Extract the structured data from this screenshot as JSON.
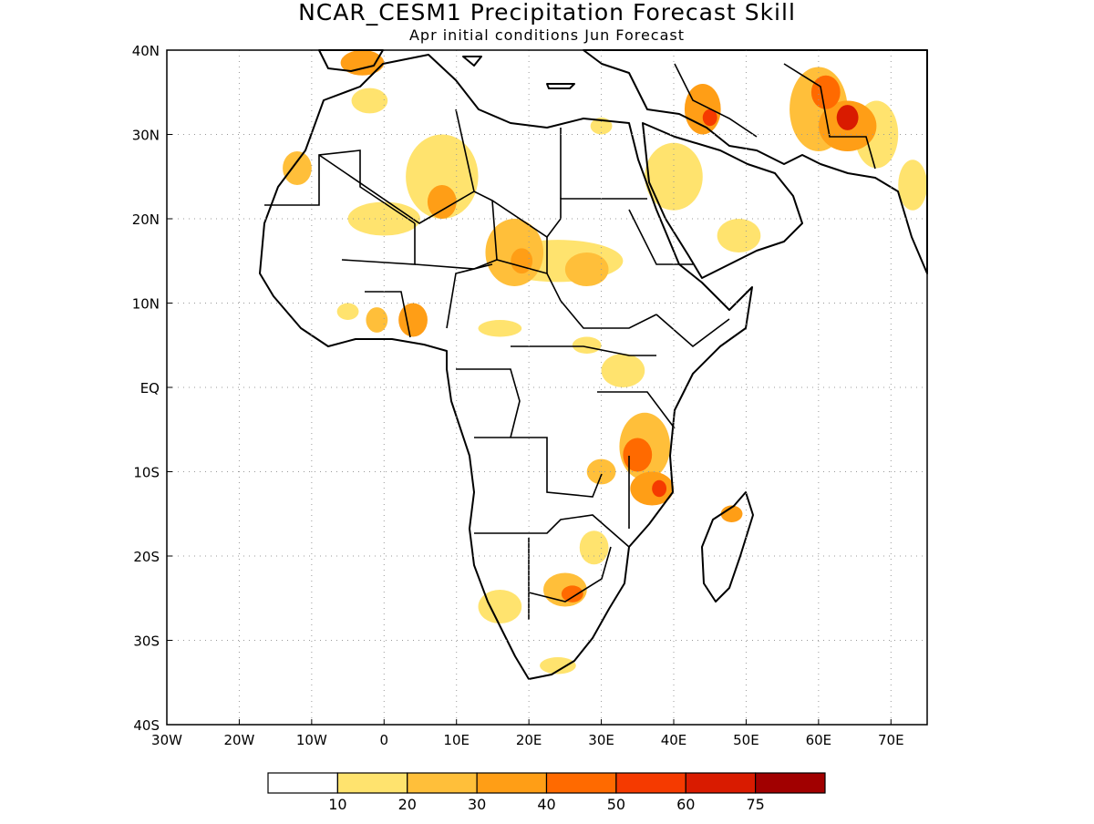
{
  "title": "NCAR_CESM1 Precipitation Forecast Skill",
  "subtitle": "Apr initial conditions  Jun Forecast",
  "map": {
    "lon_range": [
      -30,
      75
    ],
    "lat_range": [
      -40,
      40
    ],
    "x_ticks": [
      {
        "lon": -30,
        "label": "30W"
      },
      {
        "lon": -20,
        "label": "20W"
      },
      {
        "lon": -10,
        "label": "10W"
      },
      {
        "lon": 0,
        "label": "0"
      },
      {
        "lon": 10,
        "label": "10E"
      },
      {
        "lon": 20,
        "label": "20E"
      },
      {
        "lon": 30,
        "label": "30E"
      },
      {
        "lon": 40,
        "label": "40E"
      },
      {
        "lon": 50,
        "label": "50E"
      },
      {
        "lon": 60,
        "label": "60E"
      },
      {
        "lon": 70,
        "label": "70E"
      }
    ],
    "y_ticks": [
      {
        "lat": 40,
        "label": "40N"
      },
      {
        "lat": 30,
        "label": "30N"
      },
      {
        "lat": 20,
        "label": "20N"
      },
      {
        "lat": 10,
        "label": "10N"
      },
      {
        "lat": 0,
        "label": "EQ"
      },
      {
        "lat": -10,
        "label": "10S"
      },
      {
        "lat": -20,
        "label": "20S"
      },
      {
        "lat": -30,
        "label": "30S"
      },
      {
        "lat": -40,
        "label": "40S"
      }
    ],
    "grid": "dotted"
  },
  "colorbar": {
    "colors": [
      "#ffffff",
      "#ffe36e",
      "#ffbf3a",
      "#ff9e16",
      "#ff6a00",
      "#f53a00",
      "#d91b00",
      "#a10000"
    ],
    "labels": [
      "10",
      "20",
      "30",
      "40",
      "50",
      "60",
      "75"
    ]
  },
  "skill_regions": [
    {
      "lon": -12,
      "lat": 26,
      "rx": 2,
      "ry": 2,
      "level": 2
    },
    {
      "lon": -3,
      "lat": 38.5,
      "rx": 3,
      "ry": 1.5,
      "level": 3
    },
    {
      "lon": -2,
      "lat": 34,
      "rx": 2.5,
      "ry": 1.5,
      "level": 1
    },
    {
      "lon": 8,
      "lat": 25,
      "rx": 5,
      "ry": 5,
      "level": 1
    },
    {
      "lon": 8,
      "lat": 22,
      "rx": 2,
      "ry": 2,
      "level": 3
    },
    {
      "lon": 0,
      "lat": 20,
      "rx": 5,
      "ry": 2,
      "level": 1
    },
    {
      "lon": 18,
      "lat": 16,
      "rx": 4,
      "ry": 4,
      "level": 2
    },
    {
      "lon": 19,
      "lat": 15,
      "rx": 1.5,
      "ry": 1.5,
      "level": 3
    },
    {
      "lon": 28,
      "lat": 14,
      "rx": 3,
      "ry": 2,
      "level": 2
    },
    {
      "lon": 24,
      "lat": 15,
      "rx": 9,
      "ry": 2.5,
      "level": 1
    },
    {
      "lon": 4,
      "lat": 8,
      "rx": 2,
      "ry": 2,
      "level": 3
    },
    {
      "lon": -1,
      "lat": 8,
      "rx": 1.5,
      "ry": 1.5,
      "level": 2
    },
    {
      "lon": -5,
      "lat": 9,
      "rx": 1.5,
      "ry": 1,
      "level": 1
    },
    {
      "lon": 16,
      "lat": 7,
      "rx": 3,
      "ry": 1,
      "level": 1
    },
    {
      "lon": 28,
      "lat": 5,
      "rx": 2,
      "ry": 1,
      "level": 1
    },
    {
      "lon": 33,
      "lat": 2,
      "rx": 3,
      "ry": 2,
      "level": 1
    },
    {
      "lon": 36,
      "lat": -7,
      "rx": 3.5,
      "ry": 4,
      "level": 2
    },
    {
      "lon": 35,
      "lat": -8,
      "rx": 2,
      "ry": 2,
      "level": 4
    },
    {
      "lon": 37,
      "lat": -12,
      "rx": 3,
      "ry": 2,
      "level": 3
    },
    {
      "lon": 38,
      "lat": -12,
      "rx": 1,
      "ry": 1,
      "level": 5
    },
    {
      "lon": 30,
      "lat": -10,
      "rx": 2,
      "ry": 1.5,
      "level": 2
    },
    {
      "lon": 29,
      "lat": -19,
      "rx": 2,
      "ry": 2,
      "level": 1
    },
    {
      "lon": 25,
      "lat": -24,
      "rx": 3,
      "ry": 2,
      "level": 2
    },
    {
      "lon": 26,
      "lat": -24.5,
      "rx": 1.5,
      "ry": 1,
      "level": 4
    },
    {
      "lon": 16,
      "lat": -26,
      "rx": 3,
      "ry": 2,
      "level": 1
    },
    {
      "lon": 24,
      "lat": -33,
      "rx": 2.5,
      "ry": 1,
      "level": 1
    },
    {
      "lon": 48,
      "lat": -15,
      "rx": 1.5,
      "ry": 1,
      "level": 3
    },
    {
      "lon": 44,
      "lat": 33,
      "rx": 2.5,
      "ry": 3,
      "level": 3
    },
    {
      "lon": 45,
      "lat": 32,
      "rx": 1,
      "ry": 1,
      "level": 5
    },
    {
      "lon": 60,
      "lat": 33,
      "rx": 4,
      "ry": 5,
      "level": 2
    },
    {
      "lon": 61,
      "lat": 35,
      "rx": 2,
      "ry": 2,
      "level": 4
    },
    {
      "lon": 64,
      "lat": 31,
      "rx": 4,
      "ry": 3,
      "level": 3
    },
    {
      "lon": 64,
      "lat": 32,
      "rx": 1.5,
      "ry": 1.5,
      "level": 6
    },
    {
      "lon": 68,
      "lat": 30,
      "rx": 3,
      "ry": 4,
      "level": 1
    },
    {
      "lon": 40,
      "lat": 25,
      "rx": 4,
      "ry": 4,
      "level": 1
    },
    {
      "lon": 49,
      "lat": 18,
      "rx": 3,
      "ry": 2,
      "level": 1
    },
    {
      "lon": 73,
      "lat": 24,
      "rx": 2,
      "ry": 3,
      "level": 1
    },
    {
      "lon": 30,
      "lat": 31,
      "rx": 1.5,
      "ry": 1,
      "level": 1
    }
  ]
}
